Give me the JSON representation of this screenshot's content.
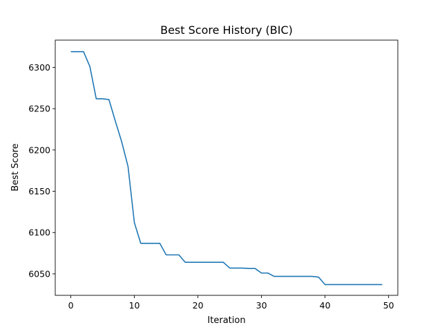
{
  "chart_data": {
    "type": "line",
    "title": "Best Score History (BIC)",
    "xlabel": "Iteration",
    "ylabel": "Best Score",
    "xlim": [
      -2.45,
      51.45
    ],
    "ylim": [
      6024,
      6333
    ],
    "xticks": [
      0,
      10,
      20,
      30,
      40,
      50
    ],
    "yticks": [
      6050,
      6100,
      6150,
      6200,
      6250,
      6300
    ],
    "grid": false,
    "line_color": "#1f77b4",
    "series": [
      {
        "x": [
          0,
          1,
          2,
          3,
          4,
          5,
          6,
          7,
          8,
          9,
          10,
          11,
          12,
          13,
          14,
          15,
          16,
          17,
          18,
          19,
          20,
          21,
          22,
          23,
          24,
          25,
          26,
          27,
          28,
          29,
          30,
          31,
          32,
          33,
          34,
          35,
          36,
          37,
          38,
          39,
          40,
          41,
          42,
          43,
          44,
          45,
          46,
          47,
          48,
          49
        ],
        "values": [
          6319,
          6319,
          6319,
          6301,
          6262,
          6262,
          6261,
          6235,
          6210,
          6180,
          6112,
          6087,
          6087,
          6087,
          6087,
          6073,
          6073,
          6073,
          6064,
          6064,
          6064,
          6064,
          6064,
          6064,
          6064,
          6057,
          6057,
          6057,
          6056.5,
          6056.5,
          6051,
          6051,
          6047,
          6047,
          6047,
          6047,
          6047,
          6047,
          6047,
          6046,
          6037,
          6037,
          6037,
          6037,
          6037,
          6037,
          6037,
          6037,
          6037,
          6037
        ]
      }
    ]
  }
}
